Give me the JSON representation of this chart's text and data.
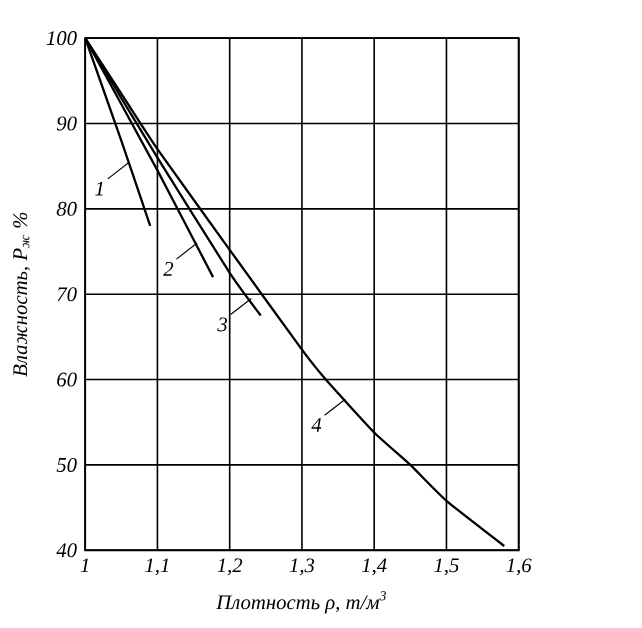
{
  "chart_data": {
    "type": "line",
    "xlabel": "Плотность ρ, т/м$^{3}$",
    "ylabel": "Влажность, Р$_{ж}$ %",
    "xlim": [
      1,
      1.6
    ],
    "ylim": [
      40,
      100
    ],
    "xticks": [
      1,
      {
        "value": 1.1,
        "label": "1,1"
      },
      {
        "value": 1.2,
        "label": "1,2"
      },
      {
        "value": 1.3,
        "label": "1,3"
      },
      {
        "value": 1.4,
        "label": "1,4"
      },
      {
        "value": 1.5,
        "label": "1,5"
      },
      {
        "value": 1.6,
        "label": "1,6"
      }
    ],
    "yticks": [
      40,
      50,
      60,
      70,
      80,
      90,
      100
    ],
    "grid": true,
    "marker": "none",
    "line_style": "solid",
    "series": [
      {
        "color": "#000000",
        "x": [
          1,
          1.05,
          1.09
        ],
        "values": [
          100,
          88,
          78
        ]
      },
      {
        "color": "#000000",
        "x": [
          1,
          1.1,
          1.177
        ],
        "values": [
          100,
          84.5,
          72
        ]
      },
      {
        "color": "#000000",
        "x": [
          1,
          1.1,
          1.2,
          1.243
        ],
        "values": [
          100,
          86,
          72.5,
          67.5
        ]
      },
      {
        "color": "#000000",
        "x": [
          1,
          1.05,
          1.1,
          1.2,
          1.3,
          1.333,
          1.4,
          1.45,
          1.5,
          1.58
        ],
        "values": [
          100,
          93.5,
          87,
          75.2,
          63.5,
          60,
          53.8,
          50,
          45.8,
          40.5
        ]
      }
    ],
    "annotations": [
      {
        "text": "1",
        "x": 1.06,
        "y": 85.4
      },
      {
        "text": "2",
        "x": 1.155,
        "y": 76
      },
      {
        "text": "3",
        "x": 1.23,
        "y": 69.5
      },
      {
        "text": "4",
        "x": 1.36,
        "y": 57.7
      }
    ]
  }
}
